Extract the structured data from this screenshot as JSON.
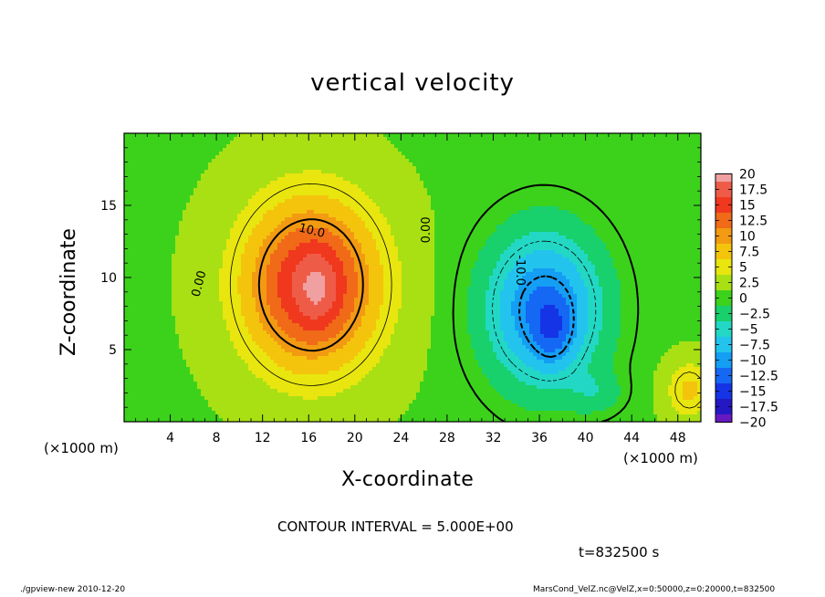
{
  "chart_data": {
    "type": "heatmap",
    "title": "vertical velocity",
    "xlabel": "X-coordinate",
    "ylabel": "Z-coordinate",
    "x_unit": "(×1000 m)",
    "xlim": [
      0,
      50
    ],
    "ylim": [
      0,
      20
    ],
    "x_ticks": [
      "4",
      "8",
      "12",
      "16",
      "20",
      "24",
      "28",
      "32",
      "36",
      "40",
      "44",
      "48"
    ],
    "x_tick_values": [
      4,
      8,
      12,
      16,
      20,
      24,
      28,
      32,
      36,
      40,
      44,
      48
    ],
    "y_ticks": [
      "5",
      "10",
      "15"
    ],
    "y_tick_values": [
      5,
      10,
      15
    ],
    "colorbar": {
      "labels": [
        "20",
        "17.5",
        "15",
        "12.5",
        "10",
        "7.5",
        "5",
        "2.5",
        "0",
        "−2.5",
        "−5",
        "−7.5",
        "−10",
        "−12.5",
        "−15",
        "−17.5",
        "−20"
      ],
      "values": [
        20,
        17.5,
        15,
        12.5,
        10,
        7.5,
        5,
        2.5,
        0,
        -2.5,
        -5,
        -7.5,
        -10,
        -12.5,
        -15,
        -17.5,
        -20
      ],
      "colors": [
        "#f0a0a0",
        "#ee5c48",
        "#f0381e",
        "#f06a18",
        "#f29a12",
        "#f4c40c",
        "#e8e60e",
        "#a8e014",
        "#3cd21c",
        "#18d06c",
        "#22d8c4",
        "#22c4ee",
        "#149ef4",
        "#1468f4",
        "#1434e6",
        "#2418c4",
        "#6818c0"
      ]
    },
    "field": {
      "background": 1,
      "features": [
        {
          "kind": "updraft",
          "x": 16.2,
          "z": 9.5,
          "peak": 16,
          "sx": 4.2,
          "sz": 4.2
        },
        {
          "kind": "updraft",
          "x": 16.8,
          "z": 9.2,
          "peak": 3,
          "sx": 1.2,
          "sz": 1.8
        },
        {
          "kind": "downdraft",
          "x": 36.4,
          "z": 7.8,
          "peak": -13,
          "sx": 3.6,
          "sz": 3.8
        },
        {
          "kind": "downdraft",
          "x": 37.2,
          "z": 6.2,
          "peak": -4,
          "sx": 1.2,
          "sz": 1.6
        },
        {
          "kind": "updraft",
          "x": 49.0,
          "z": 2.2,
          "peak": 6,
          "sx": 1.4,
          "sz": 1.4
        },
        {
          "kind": "downdraft",
          "x": 41.0,
          "z": 2.0,
          "peak": -3,
          "sx": 1.6,
          "sz": 1.0
        }
      ]
    },
    "contour_labels": [
      "10.0",
      "0.00",
      "0.00",
      "-10.0"
    ],
    "contour_interval": "CONTOUR INTERVAL = 5.000E+00",
    "time": "t=832500 s"
  },
  "footer": {
    "left": "./gpview-new  2010-12-20",
    "right": "MarsCond_VelZ.nc@VelZ,x=0:50000,z=0:20000,t=832500"
  }
}
